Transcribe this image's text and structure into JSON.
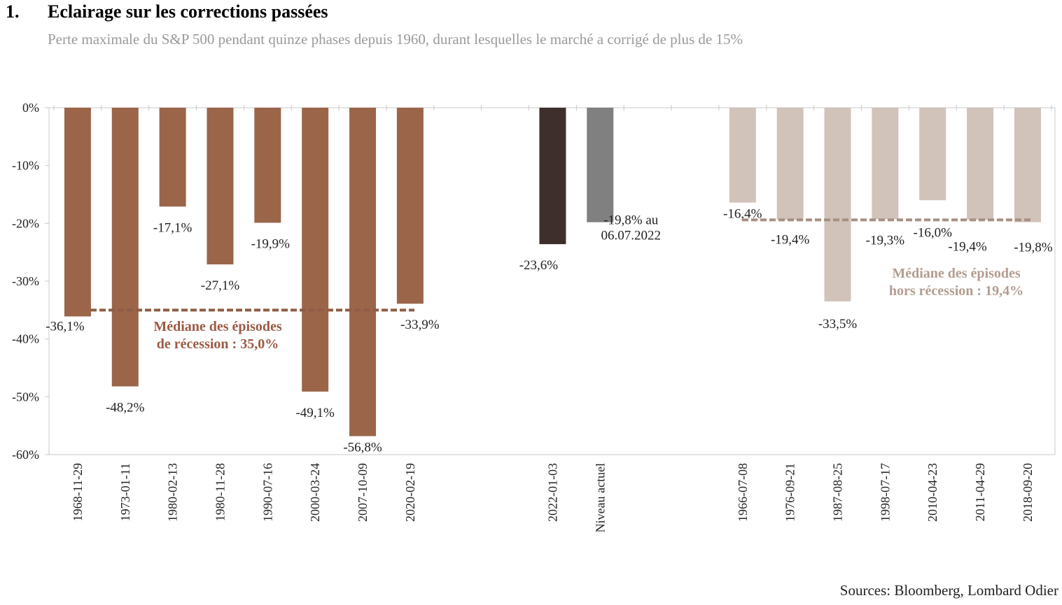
{
  "header": {
    "number": "1.",
    "title": "Eclairage sur les corrections passées",
    "subtitle": "Perte maximale du S&P 500 pendant quinze phases depuis 1960, durant lesquelles le marché a corrigé de plus de 15%"
  },
  "source": "Sources: Bloomberg, Lombard Odier",
  "colors": {
    "recession": "#9b654a",
    "current_2022": "#3e2f2c",
    "current_level": "#808080",
    "non_recession": "#d1c3ba",
    "median_recession_text": "#9b5a44",
    "median_non_recession_text": "#b39d90",
    "axis": "#c8c8c8"
  },
  "chart_data": {
    "type": "bar",
    "ylim": [
      -60,
      0
    ],
    "yticks": [
      0,
      -10,
      -20,
      -30,
      -40,
      -50,
      -60
    ],
    "ytick_labels": [
      "0%",
      "-10%",
      "-20%",
      "-30%",
      "-40%",
      "-50%",
      "-60%"
    ],
    "grid": false,
    "groups": [
      {
        "name": "recession",
        "bars": [
          {
            "category": "1968-11-29",
            "value": -36.1,
            "label": "-36,1%"
          },
          {
            "category": "1973-01-11",
            "value": -48.2,
            "label": "-48,2%"
          },
          {
            "category": "1980-02-13",
            "value": -17.1,
            "label": "-17,1%"
          },
          {
            "category": "1980-11-28",
            "value": -27.1,
            "label": "-27,1%"
          },
          {
            "category": "1990-07-16",
            "value": -19.9,
            "label": "-19,9%"
          },
          {
            "category": "2000-03-24",
            "value": -49.1,
            "label": "-49,1%"
          },
          {
            "category": "2007-10-09",
            "value": -56.8,
            "label": "-56,8%"
          },
          {
            "category": "2020-02-19",
            "value": -33.9,
            "label": "-33,9%"
          }
        ]
      },
      {
        "name": "current",
        "bars": [
          {
            "category": "2022-01-03",
            "value": -23.6,
            "label": "-23,6%"
          },
          {
            "category": "Niveau actuel",
            "value": -19.8,
            "label": [
              "-19,8% au",
              "06.07.2022"
            ]
          }
        ]
      },
      {
        "name": "non_recession",
        "bars": [
          {
            "category": "1966-07-08",
            "value": -16.4,
            "label": "-16,4%"
          },
          {
            "category": "1976-09-21",
            "value": -19.4,
            "label": "-19,4%"
          },
          {
            "category": "1987-08-25",
            "value": -33.5,
            "label": "-33,5%"
          },
          {
            "category": "1998-07-17",
            "value": -19.3,
            "label": "-19,3%"
          },
          {
            "category": "2010-04-23",
            "value": -16.0,
            "label": "-16,0%"
          },
          {
            "category": "2011-04-29",
            "value": -19.4,
            "label": "-19,4%"
          },
          {
            "category": "2018-09-20",
            "value": -19.8,
            "label": "-19,8%"
          }
        ]
      }
    ],
    "medians": [
      {
        "group": "recession",
        "value": -35.0,
        "text": [
          "Médiane des épisodes",
          "de récession : 35,0%"
        ]
      },
      {
        "group": "non_recession",
        "value": -19.4,
        "text": [
          "Médiane des épisodes",
          "hors récession : 19,4%"
        ]
      }
    ]
  }
}
